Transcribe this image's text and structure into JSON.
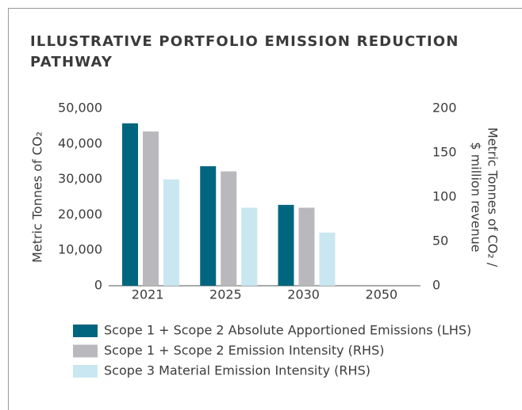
{
  "chart_data": {
    "type": "bar",
    "title": "ILLUSTRATIVE PORTFOLIO EMISSION REDUCTION PATHWAY",
    "y_label": "Metric Tonnes of CO₂",
    "y2_label": [
      "Metric Tonnes of CO₂ /",
      "$ million revenue"
    ],
    "categories": [
      "2021",
      "2025",
      "2030",
      "2050"
    ],
    "ylim": [
      0,
      50000
    ],
    "yticks": [
      0,
      {
        "value": 10000,
        "label": "10,000"
      },
      {
        "value": 20000,
        "label": "20,000"
      },
      {
        "value": 30000,
        "label": "30,000"
      },
      {
        "value": 40000,
        "label": "40,000"
      },
      {
        "value": 50000,
        "label": "50,000"
      }
    ],
    "y2lim": [
      0,
      200
    ],
    "y2ticks": [
      0,
      50,
      100,
      150,
      200
    ],
    "series": [
      {
        "name": "Scope 1 + Scope 2 Absolute Apportioned Emissions (LHS)",
        "color": "#00667f",
        "values": [
          45800,
          33700,
          22800,
          0
        ]
      },
      {
        "name": "Scope 1 + Scope 2 Emission Intensity (RHS)",
        "color": "#b9b9bd",
        "axis": "y2",
        "values": [
          174,
          129,
          88,
          0
        ]
      },
      {
        "name": "Scope 3 Material Emission Intensity (RHS)",
        "color": "#c9e7f1",
        "axis": "y2",
        "values": [
          120,
          88,
          60,
          0
        ]
      }
    ]
  }
}
